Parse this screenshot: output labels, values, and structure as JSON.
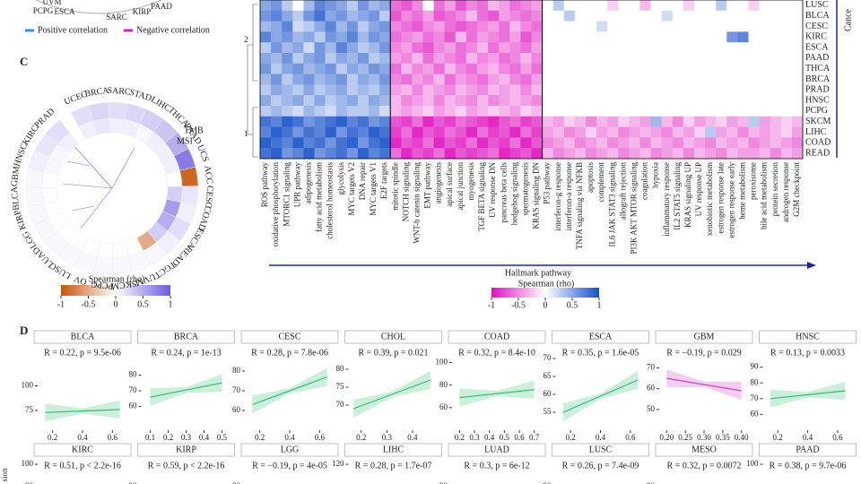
{
  "top_fragment": {
    "labels": [
      "UVM",
      "PCPG",
      "ESCA",
      "SARC",
      "KIRP",
      "PAAD"
    ],
    "legend": [
      "Positive correlation",
      "Negative correlation"
    ]
  },
  "panel_c": {
    "letter": "C",
    "cancers": [
      "UCEC",
      "BRCA",
      "SARC",
      "STAD",
      "LIHC",
      "THCA",
      "PAAD",
      "UCS",
      "ACC",
      "CESC",
      "COAD",
      "ESCA",
      "READ",
      "TGCT",
      "UVM",
      "SKCM",
      "PCPG",
      "OV",
      "LUSC",
      "LUAD",
      "LGG",
      "KIRP",
      "BLCA",
      "GBM",
      "HNSC",
      "KIRC",
      "PRAD"
    ],
    "tmb": [
      0.2,
      0.25,
      0.2,
      0.25,
      0.3,
      0.35,
      0.5,
      0.8,
      -0.9,
      0.15,
      0.1,
      0.2,
      0.1,
      0.05,
      0.05,
      0.05,
      0.05,
      0.05,
      0.05,
      0.05,
      0.05,
      0.05,
      0.05,
      0.05,
      0.1,
      0.15,
      0.2
    ],
    "msi": [
      0.1,
      0.15,
      0.1,
      0.1,
      0.05,
      0.1,
      0.1,
      0.1,
      0,
      0.3,
      0.6,
      0.5,
      0.3,
      -0.5,
      0,
      0,
      0,
      0,
      0,
      0,
      0,
      0,
      0,
      0,
      0.05,
      0.05,
      0.1
    ],
    "ring_labels": [
      "TMB",
      "MSI"
    ],
    "legend": {
      "title": "Spearman (rho)",
      "ticks": [
        -1,
        -0.5,
        0,
        0.5,
        1
      ]
    }
  },
  "heatmap": {
    "side_label": "Cance",
    "dendro_labels": [
      "2",
      "1"
    ],
    "x_label": "Hallmark pathway",
    "rows": [
      "LUSC",
      "BLCA",
      "CESC",
      "KIRC",
      "ESCA",
      "PAAD",
      "THCA",
      "BRCA",
      "PRAD",
      "HNSC",
      "PCPG",
      "SKCM",
      "LIHC",
      "COAD",
      "READ"
    ],
    "columns": [
      "ROS pathway",
      "oxidative phosphorylation",
      "MTORC1 signaling",
      "UPR pathway",
      "adipogenesis",
      "fatty acid metabolism",
      "cholesterol homeostasis",
      "glycolysis",
      "MYC targets V2",
      "DNA repair",
      "MYC targets V1",
      "E2F targets",
      "mitotic spindle",
      "NOTCH signaling",
      "WNT-b catenin signaling",
      "EMT pathway",
      "angiogenesis",
      "apical surface",
      "apical junction",
      "myogenesis",
      "TGF BETA signaling",
      "UV response DN",
      "pancreas beta cells",
      "hedgehog signaling",
      "spermatogenesis",
      "KRAS signaling DN",
      "P53 pathway",
      "interferon-g response",
      "interferon-a response",
      "TNFA signaling via NFKB",
      "apoptosis",
      "complement",
      "IL6 JAK STAT3 signaling",
      "allograft rejection",
      "PI3K AKT MTOR signaling",
      "coagulation",
      "hypoxia",
      "inflammatory response",
      "IL2 STAT5 signaling",
      "KRAS signaling UP",
      "UV response UP",
      "xenobiotic metabolism",
      "estrogen response late",
      "estrogen response early",
      "heme metabolism",
      "peroxisome",
      "bile acid metabolism",
      "protein secretion",
      "androgen response",
      "G2M checkpoint"
    ],
    "values": [
      [
        0.5,
        0.6,
        0.3,
        0,
        0.4,
        0.7,
        0.6,
        0.5,
        0.3,
        0.6,
        0.4,
        0.5,
        -0.6,
        -0.7,
        -0.5,
        0,
        -0.6,
        -0.4,
        -0.7,
        -0.5,
        -0.6,
        -0.3,
        -0.4,
        -0.6,
        -0.5,
        -0.4,
        0,
        0.3,
        0,
        0,
        0,
        0,
        -0.2,
        0,
        0,
        -0.3,
        0,
        0,
        0,
        -0.2,
        0,
        0,
        0.3,
        0,
        0,
        -0.2,
        0,
        0,
        0,
        0
      ],
      [
        0.6,
        0.7,
        0.5,
        0.3,
        0.6,
        0.8,
        0.5,
        0.6,
        0.4,
        0.5,
        0.6,
        0.3,
        -0.7,
        -0.5,
        -0.6,
        -0.4,
        -0.7,
        -0.6,
        -0.5,
        -0.3,
        -0.6,
        -0.7,
        -0.4,
        -0.5,
        -0.6,
        -0.5,
        0,
        0,
        0.3,
        0,
        0,
        0,
        0,
        0,
        0,
        0,
        0,
        0.2,
        0,
        0,
        0,
        0,
        0,
        0,
        0,
        0,
        0,
        0,
        0,
        0
      ],
      [
        0.4,
        0.5,
        0.7,
        0.2,
        0.3,
        0.5,
        0.7,
        0.4,
        0.6,
        0.3,
        0.5,
        0.6,
        -0.5,
        -0.6,
        -0.7,
        -0.5,
        -0.4,
        -0.6,
        -0.7,
        -0.6,
        -0.5,
        -0.4,
        -0.6,
        -0.3,
        -0.5,
        -0.6,
        0,
        0,
        0,
        0,
        0,
        0.2,
        0,
        0,
        0,
        0,
        0,
        0,
        0,
        0,
        0,
        0,
        0,
        0,
        0,
        0,
        0,
        0,
        0,
        0
      ],
      [
        0.7,
        0.5,
        0.6,
        0.4,
        0.5,
        0.3,
        0.6,
        0.5,
        0.7,
        0.4,
        0.6,
        0.5,
        -0.6,
        -0.5,
        -0.4,
        -0.6,
        -0.5,
        -0.7,
        -0.3,
        -0.6,
        -0.4,
        -0.5,
        -0.6,
        -0.4,
        -0.7,
        -0.5,
        0,
        0,
        0,
        0,
        0,
        0,
        0,
        0,
        0,
        0,
        0,
        0,
        0,
        0,
        0,
        0,
        0,
        0.6,
        0.7,
        0,
        0,
        0,
        0,
        0
      ],
      [
        0.3,
        0.6,
        0.4,
        0.5,
        0.2,
        0.6,
        0.4,
        0.7,
        0.5,
        0.3,
        0.4,
        0.6,
        -0.5,
        -0.4,
        -0.6,
        -0.7,
        -0.5,
        -0.4,
        -0.6,
        -0.5,
        -0.3,
        -0.6,
        -0.4,
        -0.5,
        -0.6,
        -0.4,
        0,
        0,
        0,
        0,
        0,
        0,
        0,
        0,
        0,
        0,
        0,
        0,
        0,
        0,
        0,
        0,
        0,
        0,
        0,
        0,
        0,
        0,
        0,
        0
      ],
      [
        0.5,
        0.4,
        0.6,
        0.3,
        0.5,
        0.6,
        0.3,
        0.5,
        0.4,
        0.6,
        0.3,
        0.4,
        -0.4,
        -0.5,
        -0.3,
        -0.6,
        -0.4,
        -0.5,
        -0.6,
        -0.3,
        -0.5,
        -0.4,
        -0.6,
        -0.5,
        -0.3,
        -0.5,
        0,
        0,
        0,
        0,
        0,
        0,
        0,
        0,
        0,
        0,
        0,
        0,
        0,
        0,
        0,
        0,
        0,
        0,
        0,
        0,
        0,
        0,
        0,
        0
      ],
      [
        0.6,
        0.3,
        0.5,
        0.6,
        0.4,
        0.5,
        0.6,
        0.3,
        0.5,
        0.4,
        0.6,
        0.5,
        -0.6,
        -0.3,
        -0.5,
        -0.4,
        -0.6,
        -0.3,
        -0.5,
        -0.6,
        -0.4,
        -0.3,
        -0.5,
        -0.6,
        -0.4,
        -0.6,
        0,
        0,
        0,
        0,
        0,
        0,
        0,
        0,
        0,
        0,
        0,
        0,
        0,
        0,
        0,
        0,
        0,
        0,
        0,
        0,
        0,
        0,
        0,
        0
      ],
      [
        0.4,
        0.6,
        0.3,
        0.5,
        0.6,
        0.4,
        0.5,
        0.6,
        0.3,
        0.5,
        0.4,
        0.6,
        -0.5,
        -0.6,
        -0.4,
        -0.5,
        -0.3,
        -0.6,
        -0.4,
        -0.5,
        -0.6,
        -0.4,
        -0.3,
        -0.5,
        -0.6,
        -0.4,
        0,
        0,
        0,
        0,
        0,
        0,
        0,
        0,
        0,
        0,
        0,
        0,
        0,
        0,
        0,
        0,
        0,
        0,
        0,
        0,
        0,
        0,
        0,
        0
      ],
      [
        0.3,
        0.5,
        0.4,
        0.3,
        0.5,
        0.3,
        0.4,
        0.5,
        0.3,
        0.4,
        0.3,
        0.5,
        -0.4,
        -0.3,
        -0.5,
        -0.3,
        -0.4,
        -0.5,
        -0.3,
        -0.4,
        -0.5,
        -0.3,
        -0.4,
        -0.3,
        -0.5,
        -0.3,
        0,
        0,
        0,
        0,
        0,
        0,
        0,
        0,
        0,
        0,
        0,
        0,
        0,
        0,
        0,
        0,
        0,
        0,
        0,
        0,
        0,
        0,
        0,
        0
      ],
      [
        0.5,
        0.3,
        0.4,
        0.5,
        0.3,
        0.5,
        0.3,
        0.4,
        0.5,
        0.3,
        0.5,
        0.4,
        -0.3,
        -0.5,
        -0.4,
        -0.3,
        -0.5,
        -0.3,
        -0.4,
        -0.5,
        -0.3,
        -0.5,
        -0.4,
        -0.3,
        -0.4,
        -0.5,
        0,
        0,
        0,
        0,
        0,
        0,
        0,
        0,
        0,
        0,
        0,
        0,
        0,
        0,
        0,
        0,
        0,
        0,
        0,
        0,
        0,
        0,
        0,
        0
      ],
      [
        0.3,
        0.4,
        0.3,
        0.2,
        0.4,
        0.3,
        0.2,
        0.4,
        0.3,
        0.3,
        0.4,
        0.2,
        -0.3,
        -0.4,
        -0.3,
        -0.2,
        -0.4,
        -0.3,
        -0.2,
        -0.4,
        -0.3,
        -0.2,
        -0.3,
        -0.4,
        -0.2,
        -0.3,
        0,
        0,
        0,
        0,
        0,
        0,
        0,
        0,
        0,
        0,
        0,
        0,
        0,
        0,
        0,
        0,
        0,
        0,
        0,
        0,
        0,
        0,
        0,
        0
      ],
      [
        0.8,
        0.7,
        0.9,
        0.8,
        0.6,
        0.7,
        0.8,
        0.9,
        0.7,
        0.8,
        0.6,
        0.7,
        -0.7,
        -0.8,
        -0.6,
        -0.9,
        -0.7,
        -0.8,
        -0.6,
        -0.7,
        -0.8,
        -0.9,
        -0.7,
        -0.6,
        -0.8,
        -0.7,
        -0.3,
        -0.4,
        -0.2,
        -0.3,
        -0.5,
        -0.3,
        -0.4,
        -0.2,
        -0.3,
        -0.4,
        0.4,
        -0.3,
        -0.5,
        -0.2,
        -0.4,
        -0.3,
        -0.2,
        -0.4,
        -0.3,
        0.3,
        -0.4,
        -0.3,
        -0.2,
        -0.3
      ],
      [
        0.7,
        0.9,
        0.8,
        0.6,
        0.8,
        0.7,
        0.9,
        0.6,
        0.8,
        0.7,
        0.9,
        0.8,
        -0.8,
        -0.6,
        -0.9,
        -0.7,
        -0.8,
        -0.6,
        -0.7,
        -0.9,
        -0.6,
        -0.8,
        -0.7,
        -0.9,
        -0.6,
        -0.8,
        -0.4,
        -0.3,
        -0.5,
        -0.4,
        -0.2,
        -0.4,
        -0.3,
        -0.5,
        -0.4,
        -0.3,
        -0.4,
        -0.5,
        -0.3,
        -0.4,
        -0.2,
        0.3,
        -0.4,
        -0.3,
        -0.5,
        -0.3,
        -0.4,
        -0.3,
        -0.2,
        -0.4
      ],
      [
        0.9,
        0.8,
        0.7,
        0.9,
        0.7,
        0.8,
        0.6,
        0.8,
        0.9,
        0.6,
        0.8,
        0.9,
        -0.9,
        -0.7,
        -0.8,
        -0.6,
        -0.9,
        -0.7,
        -0.8,
        -0.6,
        -0.9,
        -0.7,
        -0.8,
        -0.6,
        -0.9,
        -0.7,
        -0.5,
        -0.4,
        -0.3,
        -0.5,
        -0.4,
        -0.3,
        -0.5,
        -0.4,
        -0.3,
        -0.5,
        -0.3,
        -0.4,
        -0.5,
        -0.3,
        -0.4,
        -0.5,
        -0.3,
        -0.4,
        -0.3,
        -0.5,
        -0.4,
        -0.3,
        -0.4,
        -0.5
      ],
      [
        0.8,
        0.9,
        0.6,
        0.7,
        0.9,
        0.6,
        0.7,
        0.8,
        0.6,
        0.9,
        0.7,
        0.8,
        -0.6,
        -0.9,
        -0.7,
        -0.8,
        -0.6,
        -0.9,
        -0.7,
        -0.8,
        -0.7,
        -0.6,
        -0.9,
        -0.8,
        -0.7,
        -0.9,
        -0.3,
        -0.5,
        -0.4,
        -0.3,
        -0.5,
        -0.4,
        -0.3,
        -0.5,
        -0.4,
        -0.3,
        -0.5,
        -0.4,
        -0.3,
        -0.5,
        -0.3,
        -0.4,
        -0.5,
        -0.3,
        -0.4,
        -0.4,
        -0.3,
        -0.5,
        -0.3,
        -0.4
      ]
    ],
    "legend": {
      "title": "Spearman (rho)",
      "ticks": [
        -1,
        -0.5,
        0,
        0.5,
        1
      ]
    }
  },
  "panel_d": {
    "letter": "D",
    "y_label": "sion",
    "panels": [
      {
        "title": "BLCA",
        "stat": "R = 0.22, p = 9.5e-06",
        "color": "#2fbf71",
        "xlim": [
          0.1,
          0.7
        ],
        "ylim": [
          55,
          135
        ],
        "xticks": [
          0.2,
          0.4,
          0.6
        ],
        "yticks": [
          100,
          75
        ],
        "fit": [
          [
            0.15,
            73
          ],
          [
            0.65,
            76
          ]
        ]
      },
      {
        "title": "BRCA",
        "stat": "R = 0.24, p = 1e-13",
        "color": "#2fbf71",
        "xlim": [
          0.05,
          0.55
        ],
        "ylim": [
          45,
          95
        ],
        "xticks": [
          0.1,
          0.2,
          0.3,
          0.4,
          0.5
        ],
        "yticks": [
          80,
          70,
          60
        ],
        "fit": [
          [
            0.1,
            66
          ],
          [
            0.5,
            75
          ]
        ]
      },
      {
        "title": "CESC",
        "stat": "R = 0.28, p = 7.8e-06",
        "color": "#2fbf71",
        "xlim": [
          0.1,
          0.7
        ],
        "ylim": [
          50,
          90
        ],
        "xticks": [
          0.2,
          0.4,
          0.6
        ],
        "yticks": [
          80,
          70,
          60
        ],
        "fit": [
          [
            0.15,
            63
          ],
          [
            0.65,
            77
          ]
        ]
      },
      {
        "title": "CHOL",
        "stat": "R = 0.39, p = 0.021",
        "color": "#2fbf71",
        "xlim": [
          0.15,
          0.5
        ],
        "ylim": [
          63,
          85
        ],
        "xticks": [
          0.2,
          0.3,
          0.4
        ],
        "yticks": [
          80,
          75,
          70
        ],
        "fit": [
          [
            0.17,
            69
          ],
          [
            0.47,
            77
          ]
        ]
      },
      {
        "title": "COAD",
        "stat": "R = 0.32, p = 8.4e-10",
        "color": "#2fbf71",
        "xlim": [
          0.15,
          0.75
        ],
        "ylim": [
          40,
          110
        ],
        "xticks": [
          0.2,
          0.3,
          0.4,
          0.5,
          0.6,
          0.7
        ],
        "yticks": [
          100,
          80,
          60
        ],
        "fit": [
          [
            0.2,
            69
          ],
          [
            0.7,
            76
          ]
        ]
      },
      {
        "title": "ESCA",
        "stat": "R = 0.35, p = 1.6e-05",
        "color": "#2fbf71",
        "xlim": [
          0.1,
          0.7
        ],
        "ylim": [
          50,
          72
        ],
        "xticks": [
          0.2,
          0.4,
          0.6
        ],
        "yticks": [
          70,
          65,
          60,
          55
        ],
        "fit": [
          [
            0.15,
            55
          ],
          [
            0.65,
            64
          ]
        ]
      },
      {
        "title": "GBM",
        "stat": "R = −0.19, p = 0.029",
        "color": "#d040c0",
        "xlim": [
          0.18,
          0.42
        ],
        "ylim": [
          40,
          78
        ],
        "xticks": [
          {
            "value": 0.2,
            "label": "0.20"
          },
          {
            "value": 0.25,
            "label": "0.25"
          },
          {
            "value": 0.3,
            "label": "0.30"
          },
          {
            "value": 0.35,
            "label": "0.35"
          },
          {
            "value": 0.4,
            "label": "0.40"
          }
        ],
        "yticks": [
          70,
          60,
          50
        ],
        "fit": [
          [
            0.2,
            65
          ],
          [
            0.4,
            59
          ]
        ]
      },
      {
        "title": "HNSC",
        "stat": "R = 0.13, p = 0.0033",
        "color": "#2fbf71",
        "xlim": [
          0.1,
          0.7
        ],
        "ylim": [
          50,
          100
        ],
        "xticks": [
          0.2,
          0.4,
          0.6
        ],
        "yticks": [
          90,
          80,
          70,
          60
        ],
        "fit": [
          [
            0.15,
            70
          ],
          [
            0.65,
            75
          ]
        ]
      },
      {
        "title": "KIRC",
        "stat": "R = 0.51, p < 2.2e-16",
        "color": "#2fbf71",
        "ylim": [
          65,
          100
        ],
        "yticks": [
          100,
          90
        ]
      },
      {
        "title": "KIRP",
        "stat": "R = 0.59, p < 2.2e-16",
        "color": "#2fbf71",
        "ylim": [
          65,
          100
        ],
        "yticks": [
          90
        ]
      },
      {
        "title": "LGG",
        "stat": "R = −0.19, p = 4e-05",
        "color": "#d040c0",
        "ylim": [
          65,
          100
        ],
        "yticks": [
          90
        ]
      },
      {
        "title": "LIHC",
        "stat": "R = 0.28, p = 1.7e-07",
        "color": "#2fbf71",
        "ylim": [
          85,
          120
        ],
        "yticks": [
          120
        ]
      },
      {
        "title": "LUAD",
        "stat": "R = 0.3, p = 6e-12",
        "color": "#2fbf71",
        "ylim": [
          65,
          100
        ],
        "yticks": [
          90
        ]
      },
      {
        "title": "LUSC",
        "stat": "R = 0.26, p = 7.4e-09",
        "color": "#2fbf71",
        "ylim": [
          65,
          100
        ],
        "yticks": [
          90
        ]
      },
      {
        "title": "MESO",
        "stat": "R = 0.32, p = 0.0072",
        "color": "#2fbf71",
        "ylim": [
          65,
          100
        ],
        "yticks": [
          90
        ]
      },
      {
        "title": "PAAD",
        "stat": "R = 0.38, p = 9.7e-06",
        "color": "#2fbf71",
        "ylim": [
          65,
          100
        ],
        "yticks": [
          100
        ]
      }
    ]
  }
}
